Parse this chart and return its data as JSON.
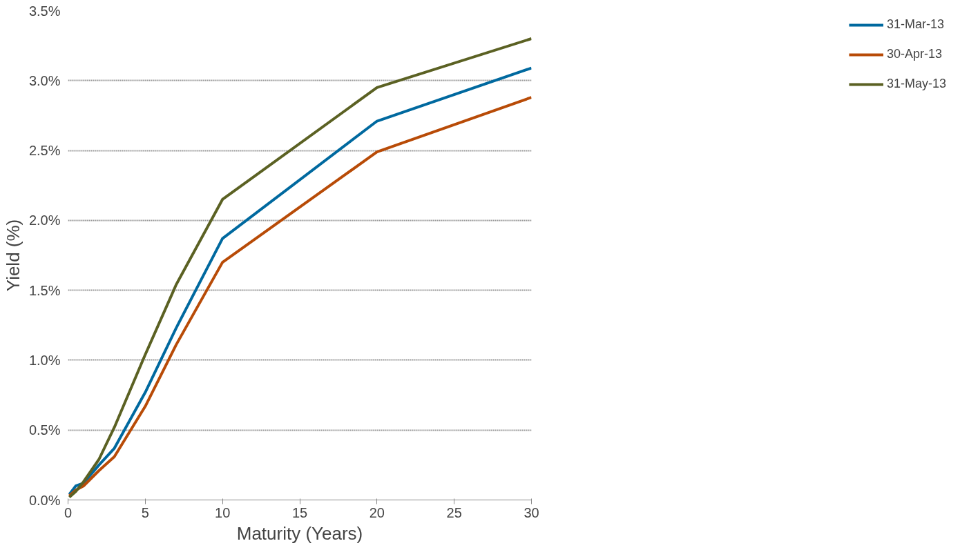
{
  "chart_data": {
    "type": "line",
    "xlabel": "Maturity (Years)",
    "ylabel": "Yield (%)",
    "x": [
      0.083,
      0.5,
      1,
      2,
      3,
      5,
      7,
      10,
      20,
      30
    ],
    "series": [
      {
        "name": "31-Mar-13",
        "color": "#00699f",
        "values": [
          0.04,
          0.1,
          0.12,
          0.25,
          0.37,
          0.77,
          1.23,
          1.87,
          2.71,
          3.09
        ]
      },
      {
        "name": "30-Apr-13",
        "color": "#b84b07",
        "values": [
          0.03,
          0.07,
          0.1,
          0.21,
          0.31,
          0.67,
          1.11,
          1.7,
          2.49,
          2.88
        ]
      },
      {
        "name": "31-May-13",
        "color": "#5b6123",
        "values": [
          0.02,
          0.06,
          0.13,
          0.29,
          0.52,
          1.04,
          1.54,
          2.15,
          2.95,
          3.3
        ]
      }
    ],
    "xlim": [
      0,
      30
    ],
    "xticks": [
      0,
      5,
      10,
      15,
      20,
      25,
      30
    ],
    "ylim": [
      0,
      3.5
    ],
    "yticks": [
      {
        "value": 0,
        "label": "0.0%"
      },
      {
        "value": 0.5,
        "label": "0.5%"
      },
      {
        "value": 1,
        "label": "1.0%"
      },
      {
        "value": 1.5,
        "label": "1.5%"
      },
      {
        "value": 2,
        "label": "2.0%"
      },
      {
        "value": 2.5,
        "label": "2.5%"
      },
      {
        "value": 3,
        "label": "3.0%"
      },
      {
        "value": 3.5,
        "label": "3.5%"
      }
    ],
    "grid": "y",
    "legend": "right",
    "line_style": "solid",
    "marker": "none"
  }
}
